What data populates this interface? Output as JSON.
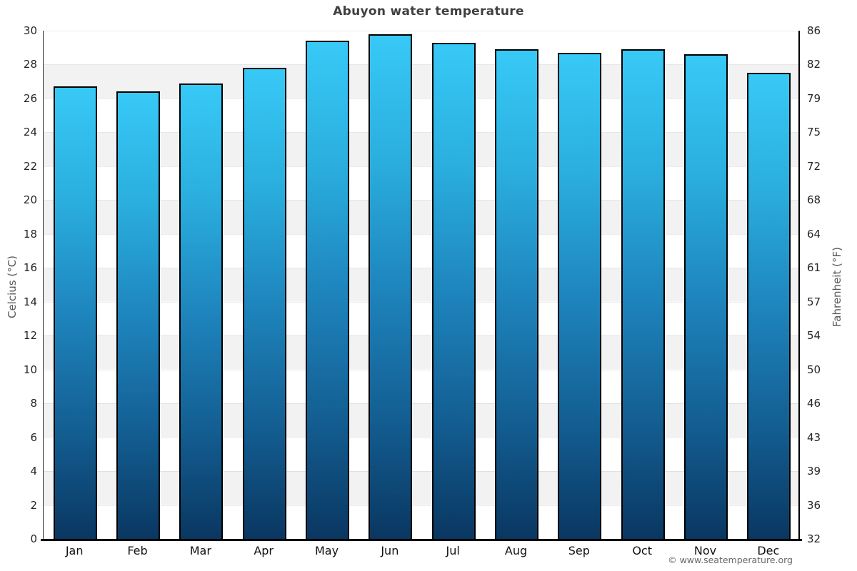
{
  "page": {
    "footer": "© www.seatemperature.org"
  },
  "chart_data": {
    "type": "bar",
    "title": "Abuyon water temperature",
    "categories": [
      "Jan",
      "Feb",
      "Mar",
      "Apr",
      "May",
      "Jun",
      "Jul",
      "Aug",
      "Sep",
      "Oct",
      "Nov",
      "Dec"
    ],
    "values": [
      26.7,
      26.4,
      26.9,
      27.8,
      29.4,
      29.8,
      29.3,
      28.9,
      28.7,
      28.9,
      28.6,
      27.5
    ],
    "unit": "°C",
    "xlabel": "",
    "ylabel_left": "Celcius (°C)",
    "ylabel_right": "Fahrenheit (°F)",
    "ylim_celsius": [
      0,
      30
    ],
    "ylim_fahrenheit": [
      32,
      86
    ],
    "celsius_ticks": [
      30,
      28,
      26,
      24,
      22,
      20,
      18,
      16,
      14,
      12,
      10,
      8,
      6,
      4,
      2,
      0
    ],
    "fahrenheit_ticks": [
      86,
      82,
      79,
      75,
      72,
      68,
      64,
      61,
      57,
      54,
      50,
      46,
      43,
      39,
      36,
      32
    ],
    "legend": "none",
    "grid": "alternating horizontal bands every 2°C",
    "colors": {
      "bar_gradient_top": "#38c9f6",
      "bar_gradient_mid": "#1e85bd",
      "bar_gradient_bottom": "#0a3761",
      "bar_border": "#000000",
      "band_gray": "#f2f2f2",
      "band_white": "#ffffff",
      "title_text": "#3f3f3f",
      "tick_text": "#262626",
      "axis_title_text": "#595959",
      "footer_text": "#666666",
      "x_axis_line": "#000000"
    }
  }
}
